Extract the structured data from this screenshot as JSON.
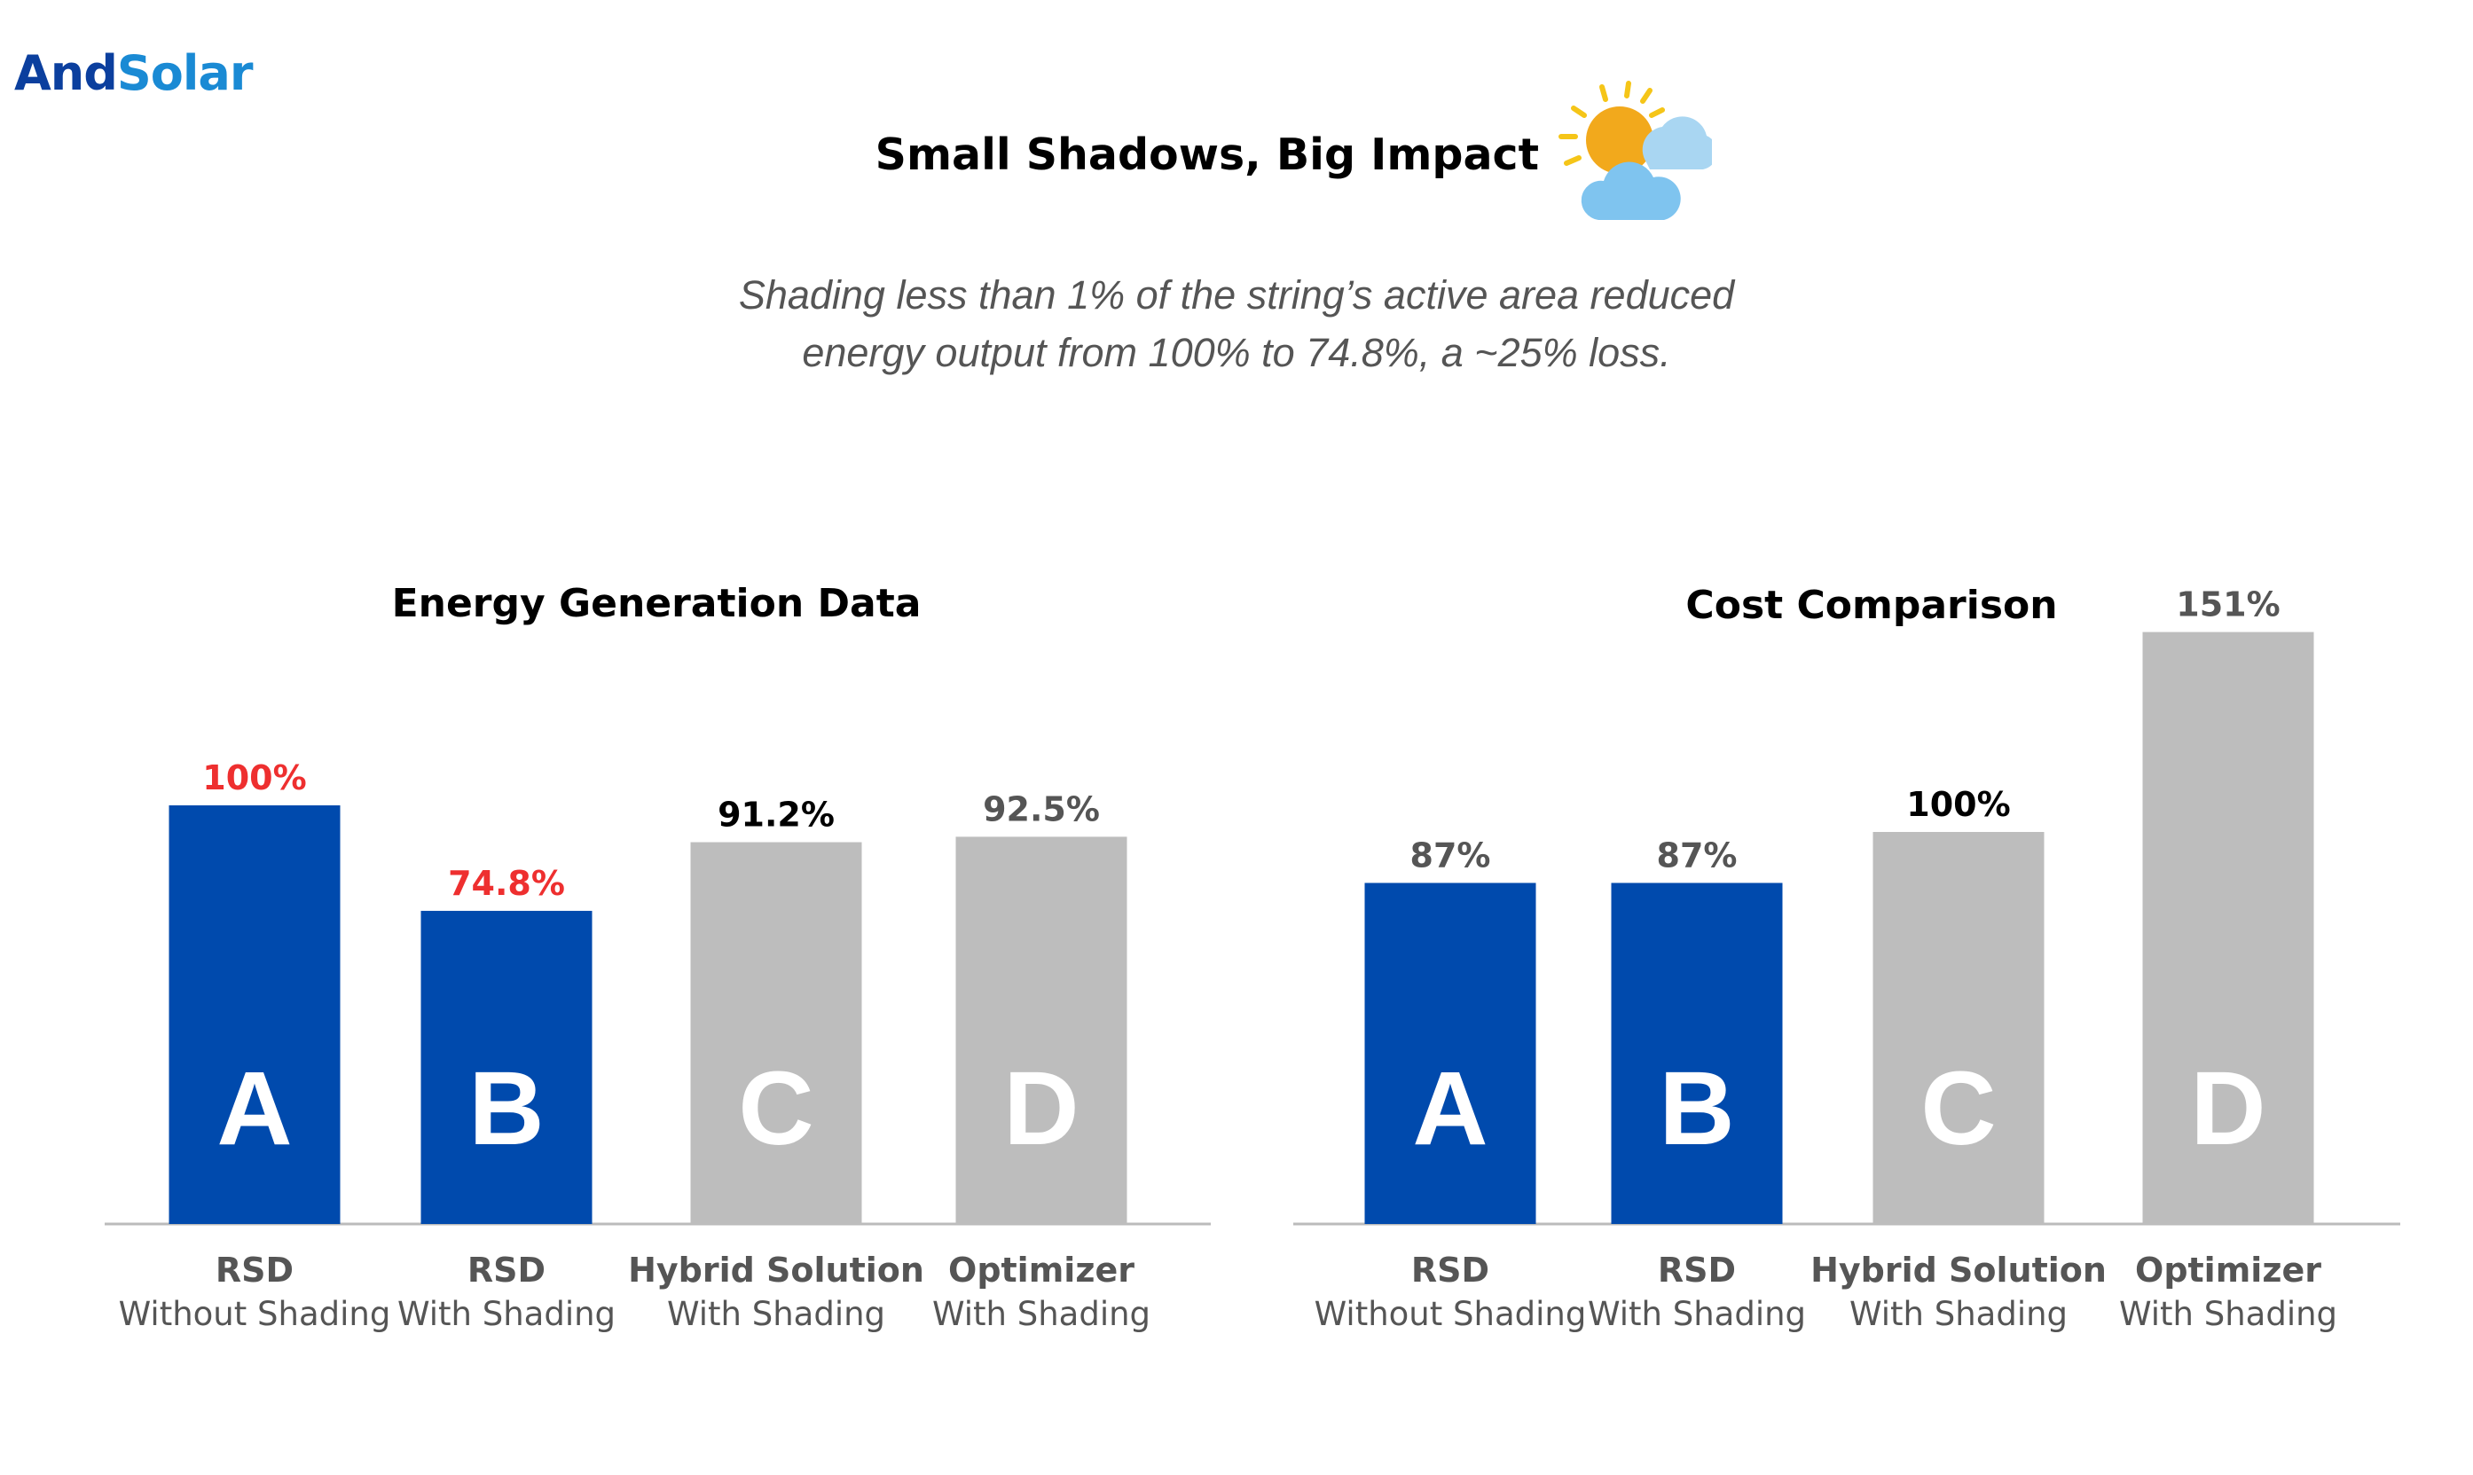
{
  "logo": {
    "and": "And",
    "solar": "Solar"
  },
  "title": "Small Shadows, Big Impact",
  "weather_icon": "sun-behind-cloud-icon",
  "subtitle": {
    "line1": "Shading less than 1% of  the string’s active area reduced",
    "line2": "energy output from 100% to 74.8%, a ~25% loss."
  },
  "colors": {
    "blue": "#004aad",
    "gray": "#bdbdbd",
    "red": "#ee2f2f",
    "black": "#000000",
    "dark_gray": "#555555",
    "axis": "#bbbbbb"
  },
  "chart_data": [
    {
      "type": "bar",
      "title": "Energy Generation Data",
      "categories": [
        "A",
        "B",
        "C",
        "D"
      ],
      "values": [
        100,
        74.8,
        91.2,
        92.5
      ],
      "value_labels": [
        "100%",
        "74.8%",
        "91.2%",
        "92.5%"
      ],
      "label_colors": [
        "#ee2f2f",
        "#ee2f2f",
        "#000000",
        "#555555"
      ],
      "bar_colors": [
        "#004aad",
        "#004aad",
        "#bdbdbd",
        "#bdbdbd"
      ],
      "x_labels": [
        {
          "main": "RSD",
          "sub": "Without Shading"
        },
        {
          "main": "RSD",
          "sub": "With Shading"
        },
        {
          "main": "Hybrid Solution",
          "sub": "With Shading"
        },
        {
          "main": "Optimizer",
          "sub": "With Shading"
        }
      ],
      "grid": false
    },
    {
      "type": "bar",
      "title": "Cost Comparison",
      "categories": [
        "A",
        "B",
        "C",
        "D"
      ],
      "values": [
        87,
        87,
        100,
        151
      ],
      "value_labels": [
        "87%",
        "87%",
        "100%",
        "151%"
      ],
      "label_colors": [
        "#555555",
        "#555555",
        "#000000",
        "#555555"
      ],
      "bar_colors": [
        "#004aad",
        "#004aad",
        "#bdbdbd",
        "#bdbdbd"
      ],
      "x_labels": [
        {
          "main": "RSD",
          "sub": "Without Shading"
        },
        {
          "main": "RSD",
          "sub": "With Shading"
        },
        {
          "main": "Hybrid Solution",
          "sub": "With Shading"
        },
        {
          "main": "Optimizer",
          "sub": "With Shading"
        }
      ],
      "grid": false
    }
  ]
}
